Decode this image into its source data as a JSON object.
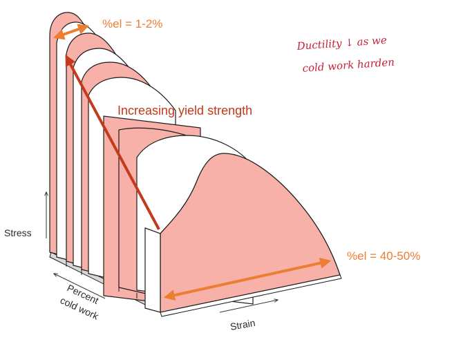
{
  "labels": {
    "el_top": "%el = 1-2%",
    "el_bottom": "%el = 40-50%",
    "yield": "Increasing yield strength",
    "stress": "Stress",
    "strain": "Strain",
    "percent": "Percent",
    "cold_work": "cold work",
    "handwritten_line1": "Ductility ↓ as we",
    "handwritten_line2": "cold work harden"
  },
  "colors": {
    "curve_fill": "#f8b1a9",
    "orange_arrow": "#ec7d31",
    "red_arrow": "#c23b1b",
    "handwriting": "#c81e3a",
    "outline": "#1a1a1a"
  }
}
